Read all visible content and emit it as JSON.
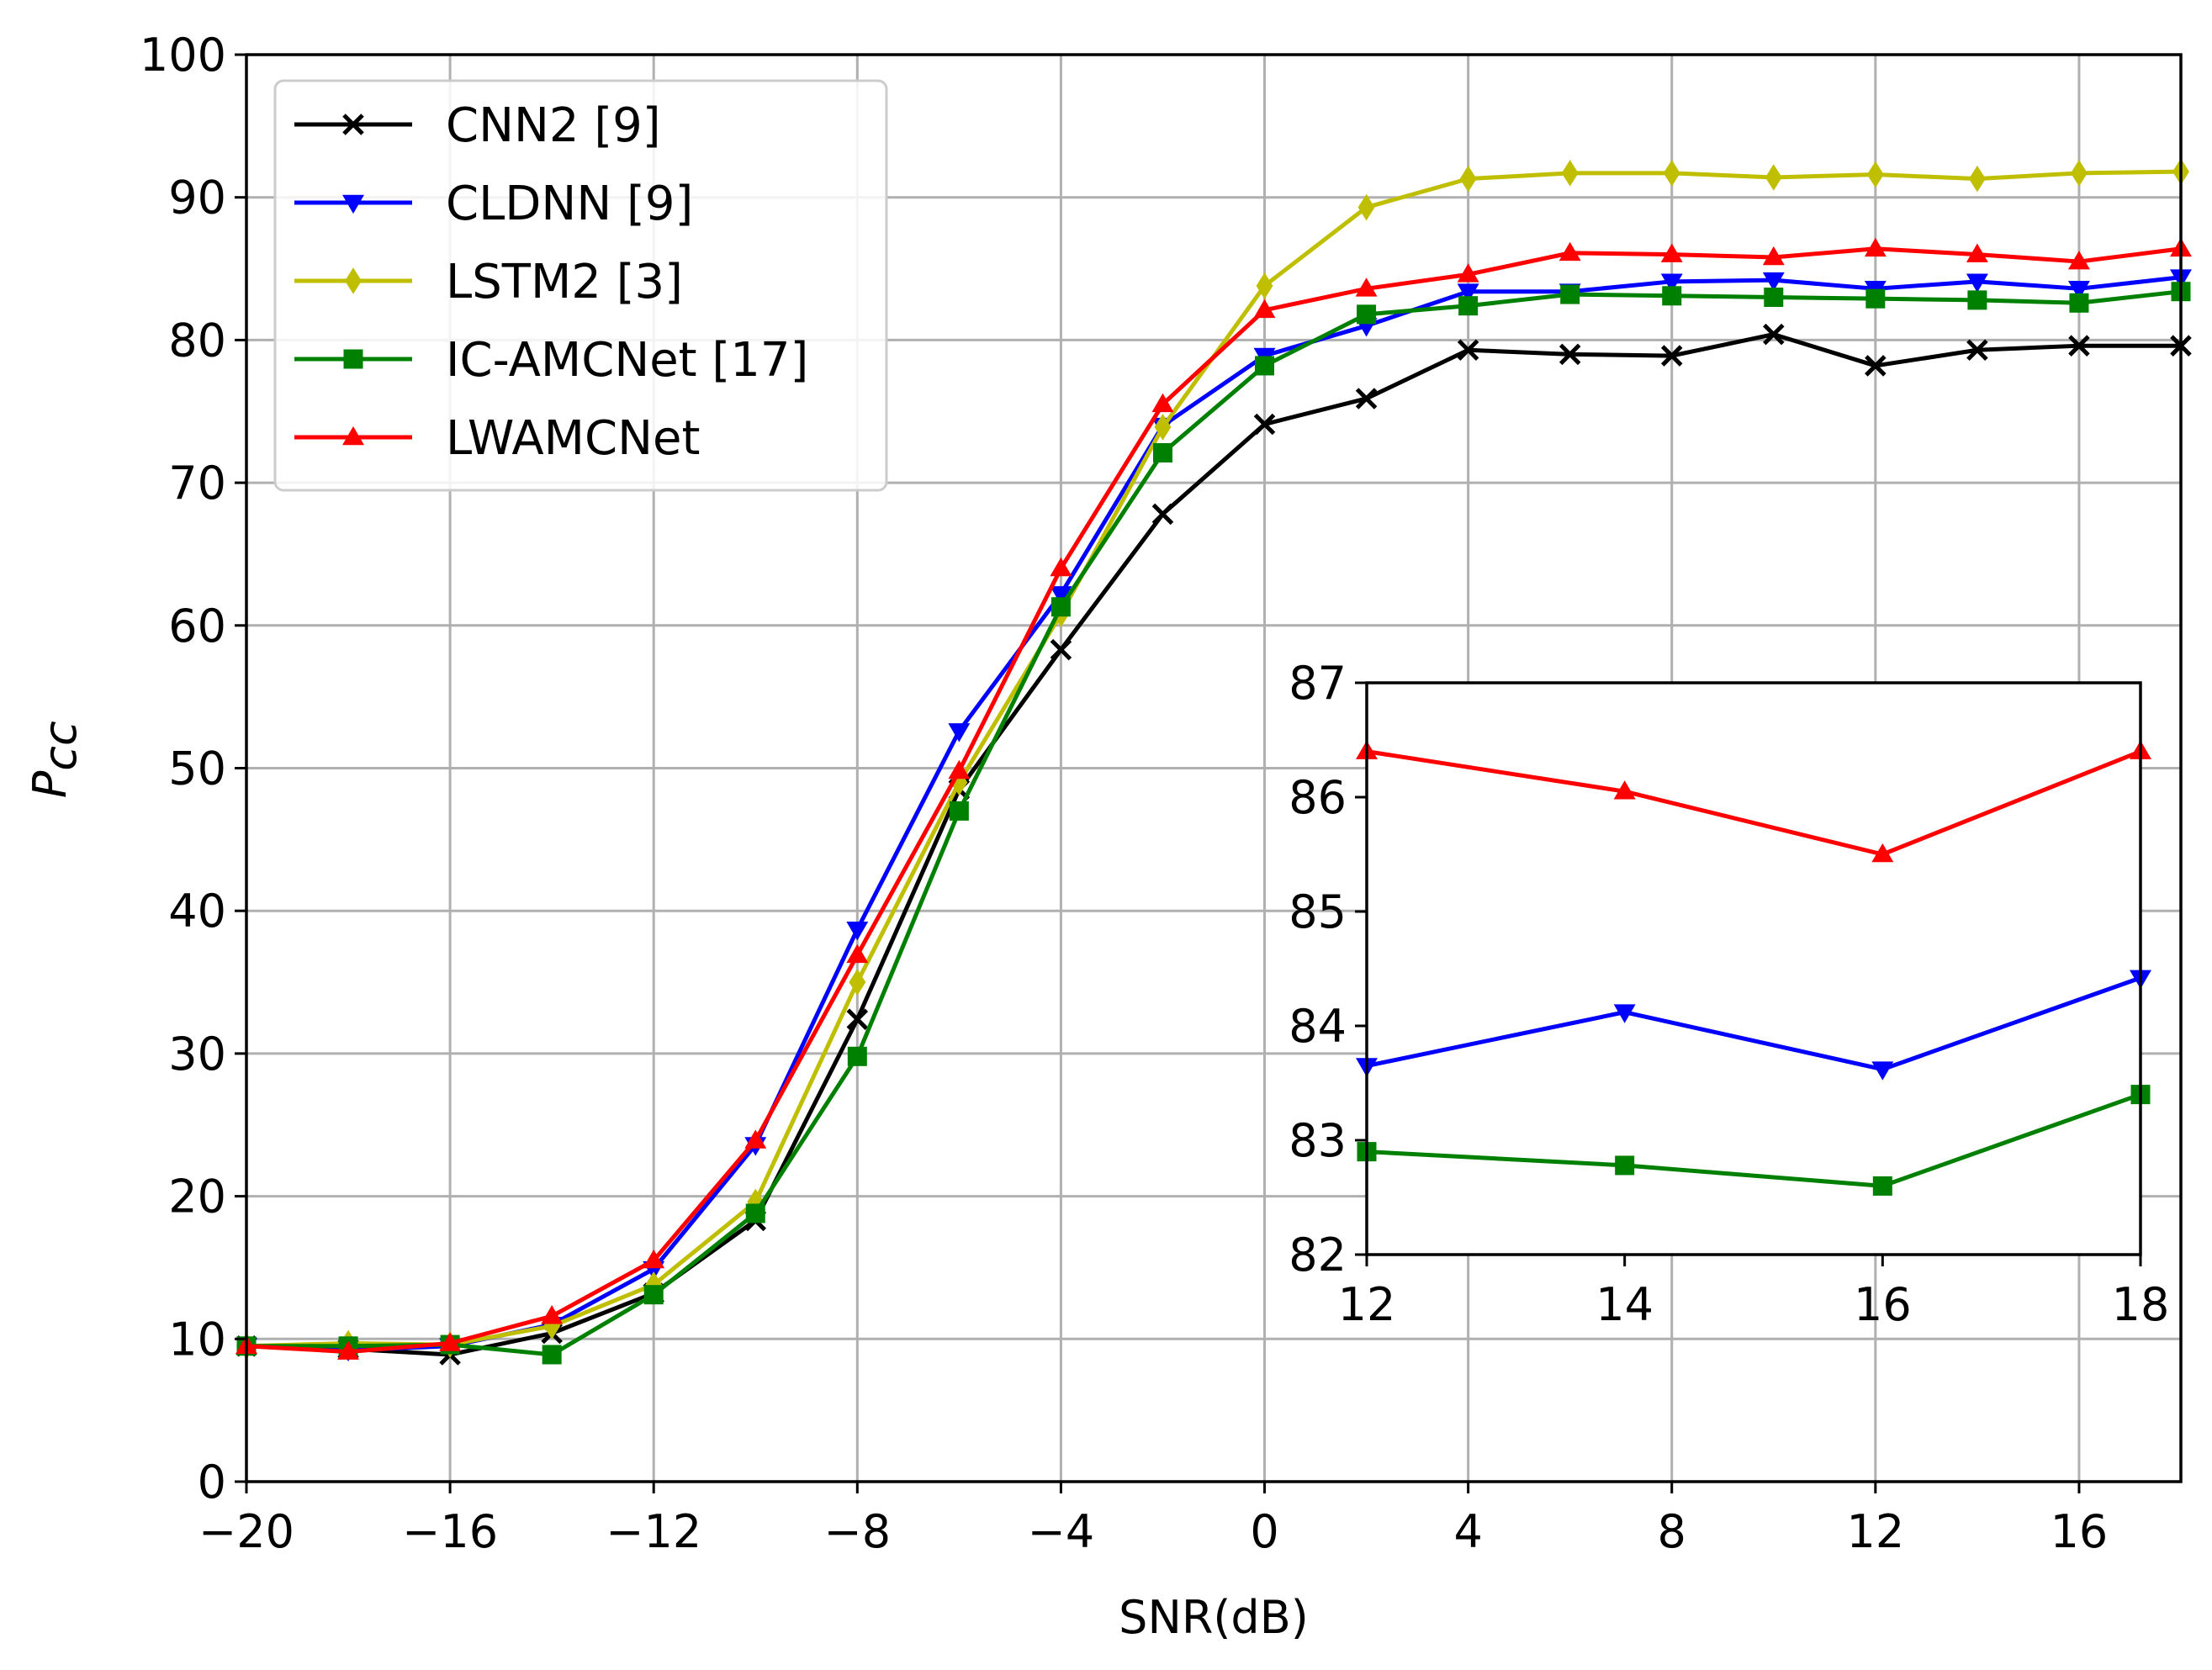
{
  "chart_data": [
    {
      "type": "line",
      "xlabel": "SNR(dB)",
      "ylabel_main": "P",
      "ylabel_sub": "cc",
      "xlim": [
        -20,
        18
      ],
      "ylim": [
        0,
        100
      ],
      "xticks": [
        -20,
        -16,
        -12,
        -8,
        -4,
        0,
        4,
        8,
        12,
        16
      ],
      "xtick_labels": [
        "−20",
        "−16",
        "−12",
        "−8",
        "−4",
        "0",
        "4",
        "8",
        "12",
        "16"
      ],
      "yticks": [
        0,
        10,
        20,
        30,
        40,
        50,
        60,
        70,
        80,
        90,
        100
      ],
      "ytick_labels": [
        "0",
        "10",
        "20",
        "30",
        "40",
        "50",
        "60",
        "70",
        "80",
        "90",
        "100"
      ],
      "grid": true,
      "legend_position": "top-left",
      "x": [
        -20,
        -18,
        -16,
        -14,
        -12,
        -10,
        -8,
        -6,
        -4,
        -2,
        0,
        2,
        4,
        6,
        8,
        10,
        12,
        14,
        16,
        18
      ],
      "series": [
        {
          "name": "CNN2 [9]",
          "color": "#000000",
          "marker": "x",
          "values": [
            9.5,
            9.3,
            8.9,
            10.4,
            13.2,
            18.3,
            32.4,
            48.5,
            58.3,
            67.8,
            74.1,
            75.9,
            79.3,
            79.0,
            78.9,
            80.4,
            78.2,
            79.3,
            79.6,
            79.6
          ]
        },
        {
          "name": "CLDNN [9]",
          "color": "#0000ff",
          "marker": "triangle-down",
          "values": [
            9.5,
            9.2,
            9.5,
            11.0,
            14.9,
            23.6,
            38.7,
            52.6,
            62.2,
            74.0,
            78.9,
            81.0,
            83.4,
            83.4,
            84.1,
            84.2,
            83.6,
            84.1,
            83.6,
            84.4
          ]
        },
        {
          "name": "LSTM2 [3]",
          "color": "#bfbf00",
          "marker": "diamond",
          "values": [
            9.5,
            9.7,
            9.6,
            10.9,
            13.8,
            19.6,
            35.0,
            49.0,
            60.8,
            73.9,
            83.8,
            89.3,
            91.3,
            91.7,
            91.7,
            91.4,
            91.6,
            91.3,
            91.7,
            91.8
          ]
        },
        {
          "name": "IC-AMCNet [17]",
          "color": "#008000",
          "marker": "square",
          "values": [
            9.5,
            9.5,
            9.6,
            8.9,
            13.1,
            18.8,
            29.8,
            47.0,
            61.3,
            72.1,
            78.2,
            81.8,
            82.4,
            83.2,
            83.1,
            83.0,
            82.9,
            82.8,
            82.6,
            83.4
          ]
        },
        {
          "name": "LWAMCNet",
          "color": "#ff0000",
          "marker": "triangle-up",
          "values": [
            9.5,
            9.1,
            9.7,
            11.6,
            15.5,
            23.9,
            36.9,
            49.8,
            64.0,
            75.5,
            82.1,
            83.6,
            84.6,
            86.1,
            86.0,
            85.8,
            86.4,
            86.0,
            85.5,
            86.4
          ]
        }
      ]
    },
    {
      "type": "line",
      "title": "",
      "xlim": [
        12,
        18
      ],
      "ylim": [
        82,
        87
      ],
      "xticks": [
        12,
        14,
        16,
        18
      ],
      "xtick_labels": [
        "12",
        "14",
        "16",
        "18"
      ],
      "yticks": [
        82,
        83,
        84,
        85,
        86,
        87
      ],
      "ytick_labels": [
        "82",
        "83",
        "84",
        "85",
        "86",
        "87"
      ],
      "grid": false,
      "x": [
        12,
        14,
        16,
        18
      ],
      "series": [
        {
          "name": "LWAMCNet",
          "color": "#ff0000",
          "marker": "triangle-up",
          "values": [
            86.4,
            86.05,
            85.5,
            86.4
          ]
        },
        {
          "name": "CLDNN [9]",
          "color": "#0000ff",
          "marker": "triangle-down",
          "values": [
            83.65,
            84.12,
            83.62,
            84.42
          ]
        },
        {
          "name": "IC-AMCNet [17]",
          "color": "#008000",
          "marker": "square",
          "values": [
            82.9,
            82.78,
            82.6,
            83.4
          ]
        }
      ]
    }
  ]
}
